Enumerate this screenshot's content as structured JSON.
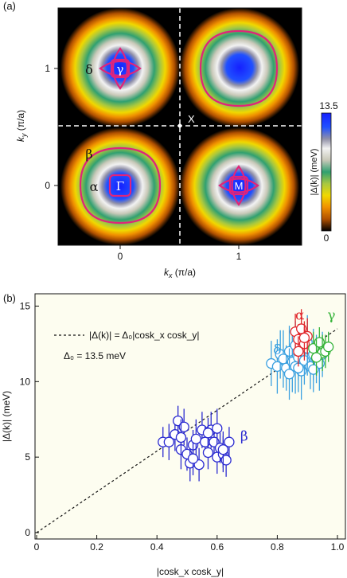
{
  "panel_a": {
    "label": "(a)",
    "xlabel_main": "k",
    "xlabel_sub": "x",
    "xlabel_unit": " (π/a)",
    "ylabel_main": "k",
    "ylabel_sub": "y",
    "ylabel_unit": " (π/a)",
    "xticks": [
      "0",
      "1"
    ],
    "yticks": [
      "1",
      "0"
    ],
    "point_labels": {
      "gamma_small": "γ",
      "delta": "δ",
      "X": "X",
      "beta": "β",
      "alpha": "α",
      "Gamma": "Γ",
      "M": "M"
    },
    "colorbar": {
      "max": "13.5",
      "min": "0",
      "label": "|Δ(k)| (meV)"
    }
  },
  "chart_data": {
    "type": "scatter",
    "panel_label": "(b)",
    "xlabel": "|cosk_x cosk_y|",
    "ylabel": "|Δ(k)| (meV)",
    "xlim": [
      0,
      1.0
    ],
    "ylim": [
      0,
      15.5
    ],
    "xticks": [
      "0",
      "0.2",
      "0.4",
      "0.6",
      "0.8",
      "1.0"
    ],
    "yticks": [
      "0",
      "5",
      "10",
      "15"
    ],
    "legend_line": "|Δ(k)| = Δ₀|cosk_x cosk_y|",
    "legend_value": "Δ₀ = 13.5 meV",
    "fit": {
      "slope": 13.5,
      "x": [
        0,
        1.0
      ]
    },
    "colors": {
      "alpha": "#e0262a",
      "beta": "#2a2ad0",
      "gamma": "#36b33a",
      "delta": "#3aa0e0",
      "background": "#fdfdf0",
      "fit": "#111111",
      "contour": "#e0247a"
    },
    "series": [
      {
        "name": "β",
        "label_pos": [
          0.69,
          6.1
        ],
        "x": [
          0.42,
          0.44,
          0.46,
          0.47,
          0.48,
          0.49,
          0.5,
          0.51,
          0.52,
          0.53,
          0.54,
          0.55,
          0.56,
          0.57,
          0.58,
          0.59,
          0.6,
          0.6,
          0.61,
          0.62,
          0.63,
          0.64,
          0.48,
          0.52,
          0.57,
          0.62
        ],
        "y": [
          6.0,
          6.0,
          6.5,
          7.4,
          5.5,
          7.0,
          5.2,
          4.6,
          5.8,
          6.2,
          4.5,
          6.8,
          6.0,
          5.3,
          6.8,
          6.0,
          5.0,
          6.9,
          5.6,
          5.2,
          4.8,
          6.0,
          6.3,
          4.9,
          6.6,
          5.5
        ],
        "err": [
          1.0,
          1.2,
          1.1,
          1.0,
          1.3,
          1.2,
          1.1,
          1.2,
          1.0,
          1.3,
          1.1,
          1.2,
          1.0,
          1.1,
          1.2,
          1.0,
          1.1,
          1.3,
          1.0,
          1.2,
          1.1,
          1.0,
          1.2,
          1.1,
          1.0,
          1.2
        ]
      },
      {
        "name": "δ",
        "label_pos": [
          0.8,
          11.8
        ],
        "x": [
          0.78,
          0.8,
          0.81,
          0.82,
          0.83,
          0.84,
          0.85,
          0.86,
          0.86,
          0.87,
          0.88,
          0.88,
          0.89,
          0.9,
          0.91,
          0.92,
          0.93,
          0.94,
          0.95,
          0.84,
          0.87,
          0.9,
          0.92
        ],
        "y": [
          11.2,
          11.0,
          11.8,
          11.5,
          10.9,
          12.0,
          11.3,
          12.4,
          11.0,
          11.6,
          12.0,
          10.7,
          11.4,
          12.2,
          11.0,
          11.8,
          11.5,
          11.2,
          11.8,
          10.5,
          10.9,
          12.6,
          10.8
        ],
        "err": [
          1.5,
          1.8,
          1.6,
          1.9,
          1.5,
          1.7,
          2.0,
          1.6,
          1.8,
          1.5,
          1.7,
          1.9,
          1.6,
          1.8,
          1.5,
          1.7,
          1.6,
          1.8,
          1.5,
          1.7,
          1.6,
          1.8,
          1.5
        ]
      },
      {
        "name": "α",
        "label_pos": [
          0.875,
          14.1
        ],
        "x": [
          0.86,
          0.87,
          0.88,
          0.89,
          0.9,
          0.87,
          0.89
        ],
        "y": [
          13.3,
          12.8,
          13.5,
          12.5,
          13.0,
          12.0,
          12.9
        ],
        "err": [
          1.2,
          1.0,
          1.3,
          1.1,
          1.2,
          1.0,
          1.1
        ]
      },
      {
        "name": "γ",
        "label_pos": [
          0.98,
          14.1
        ],
        "x": [
          0.92,
          0.94,
          0.95,
          0.96,
          0.97,
          0.93
        ],
        "y": [
          12.2,
          12.6,
          11.9,
          12.0,
          12.3,
          11.6
        ],
        "err": [
          1.1,
          1.0,
          1.2,
          1.1,
          1.0,
          1.2
        ]
      }
    ]
  }
}
